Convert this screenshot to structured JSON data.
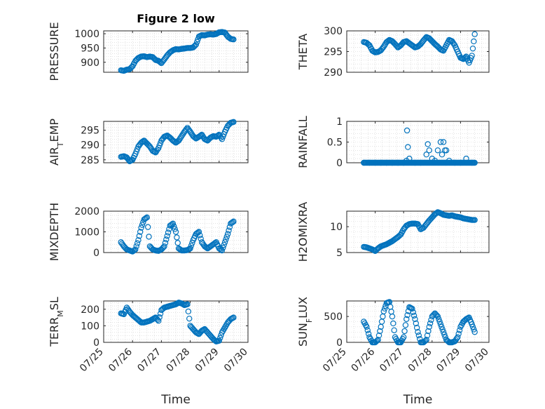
{
  "figure": {
    "title": "Figure 2 low",
    "xlabel": "Time",
    "xtick_labels": [
      "07/25",
      "07/26",
      "07/27",
      "07/28",
      "07/29",
      "07/30"
    ],
    "marker_color": "#0072BD",
    "grid_color": "#d0d0d0",
    "axis_color": "#262626"
  },
  "chart_data": [
    {
      "type": "scatter",
      "id": "pressure",
      "title": "Figure 2 low",
      "ylabel": "PRESSURE",
      "ylim": [
        865,
        1010
      ],
      "yticks": [
        900,
        950,
        1000
      ],
      "xlim": [
        25,
        30
      ],
      "xlabel": "",
      "series": [
        {
          "x": [
            25.6,
            25.7,
            25.8,
            25.9,
            26.0,
            26.1,
            26.2,
            26.3,
            26.4,
            26.5,
            26.6,
            26.7,
            26.8,
            26.9,
            27.0,
            27.1,
            27.2,
            27.3,
            27.4,
            27.5,
            27.6,
            27.7,
            27.8,
            27.9,
            28.0,
            28.1,
            28.2,
            28.3,
            28.4,
            28.5,
            28.6,
            28.7,
            28.8,
            28.9,
            29.0,
            29.1,
            29.2,
            29.3,
            29.4,
            29.5
          ],
          "y": [
            872,
            870,
            874,
            876,
            886,
            905,
            915,
            920,
            921,
            918,
            920,
            918,
            908,
            905,
            897,
            910,
            924,
            935,
            942,
            946,
            945,
            947,
            948,
            950,
            950,
            952,
            962,
            990,
            995,
            994,
            997,
            998,
            997,
            999,
            1005,
            1006,
            1004,
            990,
            982,
            980
          ]
        }
      ]
    },
    {
      "type": "scatter",
      "id": "theta",
      "ylabel": "THETA",
      "ylim": [
        290,
        300
      ],
      "yticks": [
        290,
        295,
        300
      ],
      "xlim": [
        25,
        30
      ],
      "xlabel": "",
      "series": [
        {
          "x": [
            25.6,
            25.7,
            25.8,
            25.9,
            26.0,
            26.1,
            26.2,
            26.3,
            26.4,
            26.5,
            26.6,
            26.7,
            26.8,
            26.9,
            27.0,
            27.1,
            27.2,
            27.3,
            27.4,
            27.5,
            27.6,
            27.7,
            27.8,
            27.9,
            28.0,
            28.1,
            28.2,
            28.3,
            28.4,
            28.5,
            28.6,
            28.7,
            28.8,
            28.9,
            29.0,
            29.1,
            29.2,
            29.3,
            29.4,
            29.5
          ],
          "y": [
            297.3,
            297.1,
            296.5,
            295.2,
            294.8,
            294.9,
            295.3,
            296.2,
            297.3,
            297.8,
            297.5,
            296.8,
            296.0,
            296.5,
            297.3,
            297.5,
            297.0,
            296.5,
            296.0,
            296.2,
            296.8,
            297.7,
            298.5,
            298.2,
            297.5,
            296.8,
            296.2,
            295.5,
            295.2,
            296.5,
            297.8,
            297.5,
            296.5,
            295.0,
            293.5,
            293.2,
            293.8,
            292.3,
            294.0,
            299.2
          ]
        }
      ]
    },
    {
      "type": "scatter",
      "id": "air_temp",
      "ylabel": "AIR_TEMP",
      "ylim": [
        284,
        298
      ],
      "yticks": [
        285,
        290,
        295
      ],
      "xlim": [
        25,
        30
      ],
      "xlabel": "",
      "series": [
        {
          "x": [
            25.6,
            25.7,
            25.8,
            25.9,
            26.0,
            26.1,
            26.2,
            26.3,
            26.4,
            26.5,
            26.6,
            26.7,
            26.8,
            26.9,
            27.0,
            27.1,
            27.2,
            27.3,
            27.4,
            27.5,
            27.6,
            27.7,
            27.8,
            27.9,
            28.0,
            28.1,
            28.2,
            28.3,
            28.4,
            28.5,
            28.6,
            28.7,
            28.8,
            28.9,
            29.0,
            29.1,
            29.2,
            29.3,
            29.4,
            29.5
          ],
          "y": [
            286.0,
            286.2,
            285.8,
            284.5,
            285.0,
            287.0,
            289.5,
            290.8,
            291.5,
            290.5,
            289.5,
            288.0,
            287.5,
            289.0,
            291.5,
            292.8,
            293.2,
            292.5,
            291.5,
            290.8,
            291.5,
            293.0,
            294.5,
            295.8,
            294.5,
            293.0,
            292.2,
            292.8,
            293.5,
            292.0,
            291.5,
            292.5,
            293.0,
            292.8,
            293.5,
            292.0,
            294.5,
            296.5,
            297.5,
            297.8
          ]
        }
      ]
    },
    {
      "type": "scatter",
      "id": "rainfall",
      "ylabel": "RAINFALL",
      "ylim": [
        0,
        1
      ],
      "yticks": [
        0,
        0.5,
        1
      ],
      "xlim": [
        25,
        30
      ],
      "xlabel": "",
      "series": [
        {
          "x": [
            25.6,
            25.8,
            26.0,
            26.2,
            26.4,
            26.6,
            26.8,
            27.0,
            27.1,
            27.12,
            27.15,
            27.2,
            27.4,
            27.6,
            27.8,
            27.85,
            27.9,
            28.0,
            28.1,
            28.2,
            28.3,
            28.35,
            28.4,
            28.45,
            28.5,
            28.6,
            28.8,
            29.0,
            29.2,
            29.4,
            29.5
          ],
          "y": [
            0,
            0,
            0,
            0,
            0,
            0,
            0,
            0,
            0.05,
            0.78,
            0.38,
            0.1,
            0,
            0,
            0.2,
            0.45,
            0.3,
            0.1,
            0.05,
            0.3,
            0.5,
            0.2,
            0.5,
            0.3,
            0.3,
            0.05,
            0,
            0,
            0.1,
            0,
            0
          ]
        }
      ]
    },
    {
      "type": "scatter",
      "id": "mixdepth",
      "ylabel": "MIXDEPTH",
      "ylim": [
        0,
        2000
      ],
      "yticks": [
        0,
        1000,
        2000
      ],
      "xlim": [
        25,
        30
      ],
      "xlabel": "",
      "series": [
        {
          "x": [
            25.6,
            25.7,
            25.8,
            25.9,
            26.0,
            26.1,
            26.2,
            26.3,
            26.4,
            26.5,
            26.6,
            26.7,
            26.8,
            26.9,
            27.0,
            27.1,
            27.2,
            27.3,
            27.4,
            27.5,
            27.6,
            27.7,
            27.8,
            27.9,
            28.0,
            28.1,
            28.2,
            28.3,
            28.4,
            28.5,
            28.6,
            28.7,
            28.8,
            28.9,
            29.0,
            29.1,
            29.2,
            29.3,
            29.4,
            29.5
          ],
          "y": [
            500,
            300,
            150,
            100,
            50,
            150,
            600,
            1200,
            1600,
            1700,
            300,
            150,
            100,
            80,
            150,
            300,
            800,
            1300,
            1400,
            1000,
            200,
            100,
            100,
            120,
            200,
            600,
            900,
            1000,
            500,
            300,
            200,
            300,
            400,
            500,
            200,
            100,
            500,
            900,
            1400,
            1500
          ]
        }
      ]
    },
    {
      "type": "scatter",
      "id": "h2omixra",
      "ylabel": "H2OMIXRA",
      "ylim": [
        5,
        13
      ],
      "yticks": [
        5,
        10
      ],
      "xlim": [
        25,
        30
      ],
      "xlabel": "",
      "series": [
        {
          "x": [
            25.6,
            25.7,
            25.8,
            25.9,
            26.0,
            26.1,
            26.2,
            26.3,
            26.4,
            26.5,
            26.6,
            26.7,
            26.8,
            26.9,
            27.0,
            27.1,
            27.2,
            27.3,
            27.4,
            27.5,
            27.6,
            27.7,
            27.8,
            27.9,
            28.0,
            28.1,
            28.2,
            28.3,
            28.4,
            28.5,
            28.6,
            28.7,
            28.8,
            28.9,
            29.0,
            29.1,
            29.2,
            29.3,
            29.4,
            29.5
          ],
          "y": [
            6.1,
            6.0,
            5.8,
            5.6,
            5.3,
            5.8,
            6.2,
            6.4,
            6.6,
            6.9,
            7.2,
            7.6,
            8.0,
            8.5,
            9.5,
            10.2,
            10.5,
            10.6,
            10.6,
            10.5,
            9.5,
            9.8,
            10.5,
            11.2,
            11.8,
            12.4,
            12.8,
            12.6,
            12.3,
            12.2,
            12.1,
            12.2,
            12.0,
            11.9,
            11.8,
            11.6,
            11.5,
            11.4,
            11.3,
            11.3
          ]
        }
      ]
    },
    {
      "type": "scatter",
      "id": "terr_msl",
      "ylabel": "TERR_MSL",
      "ylim": [
        0,
        250
      ],
      "yticks": [
        0,
        100,
        200
      ],
      "xlim": [
        25,
        30
      ],
      "xlabel": "Time",
      "series": [
        {
          "x": [
            25.6,
            25.7,
            25.8,
            25.9,
            26.0,
            26.1,
            26.2,
            26.3,
            26.4,
            26.5,
            26.6,
            26.7,
            26.8,
            26.9,
            27.0,
            27.1,
            27.2,
            27.3,
            27.4,
            27.5,
            27.6,
            27.7,
            27.8,
            27.9,
            28.0,
            28.1,
            28.2,
            28.3,
            28.4,
            28.5,
            28.6,
            28.7,
            28.8,
            28.9,
            29.0,
            29.1,
            29.2,
            29.3,
            29.4,
            29.5
          ],
          "y": [
            175,
            170,
            210,
            185,
            165,
            150,
            135,
            120,
            120,
            125,
            130,
            140,
            150,
            130,
            195,
            210,
            215,
            220,
            225,
            230,
            240,
            235,
            225,
            230,
            100,
            80,
            60,
            50,
            70,
            80,
            60,
            40,
            20,
            5,
            10,
            60,
            90,
            120,
            140,
            150
          ]
        }
      ]
    },
    {
      "type": "scatter",
      "id": "sun_flux",
      "ylabel": "SUN_FLUX",
      "ylim": [
        0,
        800
      ],
      "yticks": [
        0,
        500
      ],
      "xlim": [
        25,
        30
      ],
      "xlabel": "Time",
      "series": [
        {
          "x": [
            25.6,
            25.7,
            25.8,
            25.9,
            26.0,
            26.1,
            26.2,
            26.3,
            26.4,
            26.5,
            26.6,
            26.7,
            26.8,
            26.9,
            27.0,
            27.1,
            27.2,
            27.3,
            27.4,
            27.5,
            27.6,
            27.7,
            27.8,
            27.9,
            28.0,
            28.1,
            28.2,
            28.3,
            28.4,
            28.5,
            28.6,
            28.7,
            28.8,
            28.9,
            29.0,
            29.1,
            29.2,
            29.3,
            29.4,
            29.5
          ],
          "y": [
            400,
            300,
            100,
            0,
            0,
            50,
            300,
            600,
            760,
            780,
            500,
            100,
            0,
            0,
            100,
            450,
            680,
            650,
            450,
            200,
            0,
            0,
            50,
            300,
            500,
            560,
            500,
            350,
            200,
            50,
            0,
            0,
            20,
            100,
            300,
            400,
            450,
            480,
            350,
            200
          ]
        }
      ]
    }
  ]
}
